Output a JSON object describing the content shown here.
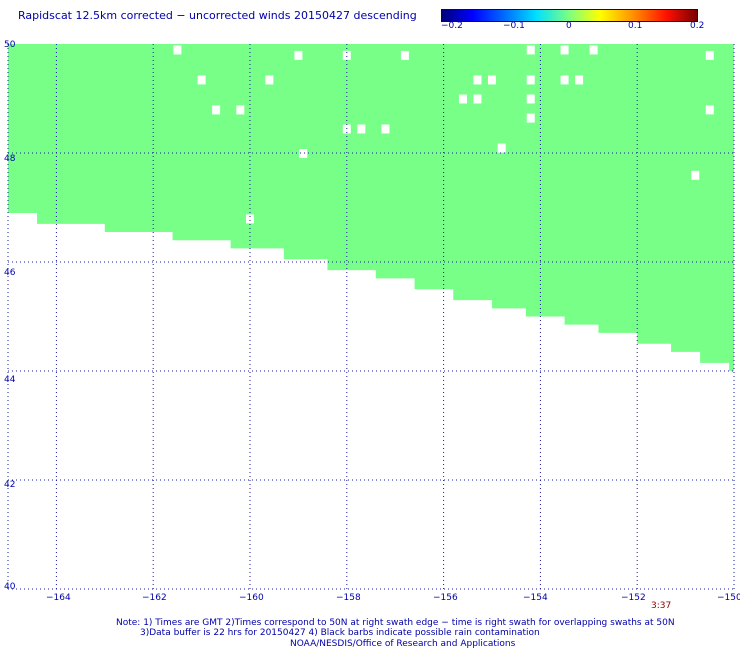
{
  "title": "Rapidscat 12.5km corrected − uncorrected winds 20150427 descending",
  "colorbar": {
    "labels": [
      "−0.2",
      "−0.1",
      "0",
      "0.1",
      "0.2"
    ],
    "colors": [
      "#00007a",
      "#0000ff",
      "#00e0ff",
      "#7fff7f",
      "#ffff00",
      "#ff9000",
      "#7a0000"
    ]
  },
  "y_labels": [
    "50",
    "48",
    "46",
    "44",
    "42",
    "40"
  ],
  "x_labels": [
    "−164",
    "−162",
    "−160",
    "−158",
    "−156",
    "−154",
    "−152",
    "−150"
  ],
  "swath_time": "3:37",
  "notes": [
    "Note: 1) Times are GMT 2)Times correspond to 50N at right swath edge − time is right swath for overlapping swaths at 50N",
    "3)Data buffer is 22 hrs for 20150427 4) Black barbs indicate possible rain contamination",
    "NOAA/NESDIS/Office of Research and Applications"
  ],
  "map": {
    "lat_range": [
      40,
      50
    ],
    "lon_range": [
      -165,
      -150
    ],
    "data_color": "#77ff88",
    "swath_value": 0,
    "swath_lower_edge": [
      [
        -165.0,
        46.9
      ],
      [
        -164.4,
        46.7
      ],
      [
        -163.0,
        46.55
      ],
      [
        -161.6,
        46.4
      ],
      [
        -160.4,
        46.25
      ],
      [
        -159.3,
        46.05
      ],
      [
        -158.4,
        45.85
      ],
      [
        -157.4,
        45.7
      ],
      [
        -156.6,
        45.5
      ],
      [
        -155.8,
        45.3
      ],
      [
        -155.0,
        45.15
      ],
      [
        -154.3,
        45.0
      ],
      [
        -153.5,
        44.85
      ],
      [
        -152.8,
        44.7
      ],
      [
        -152.0,
        44.5
      ],
      [
        -151.3,
        44.35
      ],
      [
        -150.7,
        44.15
      ],
      [
        -150.1,
        44.0
      ]
    ],
    "missing_cells": [
      [
        -161.5,
        49.9
      ],
      [
        -159.0,
        49.8
      ],
      [
        -158.0,
        49.8
      ],
      [
        -156.8,
        49.8
      ],
      [
        -154.2,
        49.9
      ],
      [
        -153.5,
        49.9
      ],
      [
        -152.9,
        49.9
      ],
      [
        -150.5,
        49.8
      ],
      [
        -161.0,
        49.35
      ],
      [
        -159.6,
        49.35
      ],
      [
        -155.3,
        49.35
      ],
      [
        -155.0,
        49.35
      ],
      [
        -154.2,
        49.35
      ],
      [
        -153.5,
        49.35
      ],
      [
        -153.2,
        49.35
      ],
      [
        -155.6,
        49.0
      ],
      [
        -155.3,
        49.0
      ],
      [
        -154.2,
        49.0
      ],
      [
        -160.7,
        48.8
      ],
      [
        -160.2,
        48.8
      ],
      [
        -150.5,
        48.8
      ],
      [
        -154.2,
        48.65
      ],
      [
        -158.0,
        48.45
      ],
      [
        -157.7,
        48.45
      ],
      [
        -157.2,
        48.45
      ],
      [
        -154.8,
        48.1
      ],
      [
        -158.9,
        48.0
      ],
      [
        -150.8,
        47.6
      ],
      [
        -160.0,
        46.8
      ]
    ]
  }
}
